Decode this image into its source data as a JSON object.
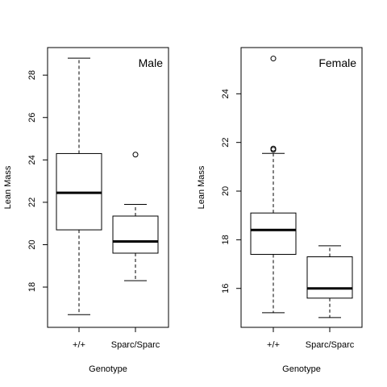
{
  "chart_data": [
    {
      "type": "box",
      "panel_label": "Male",
      "xlabel": "Genotype",
      "ylabel": "Lean Mass",
      "categories": [
        "+/+",
        "Sparc/Sparc"
      ],
      "yticks": [
        18,
        20,
        22,
        24,
        26,
        28
      ],
      "ylim": [
        16.1,
        29.3
      ],
      "boxes": [
        {
          "category": "+/+",
          "whisker_low": 16.7,
          "q1": 20.7,
          "median": 22.45,
          "q3": 24.3,
          "whisker_high": 28.8,
          "outliers": []
        },
        {
          "category": "Sparc/Sparc",
          "whisker_low": 18.3,
          "q1": 19.6,
          "median": 20.15,
          "q3": 21.35,
          "whisker_high": 21.9,
          "outliers": [
            24.25
          ]
        }
      ],
      "legend_position": "top-right",
      "grid": false
    },
    {
      "type": "box",
      "panel_label": "Female",
      "xlabel": "Genotype",
      "ylabel": "Lean Mass",
      "categories": [
        "+/+",
        "Sparc/Sparc"
      ],
      "yticks": [
        16,
        18,
        20,
        22,
        24
      ],
      "ylim": [
        14.4,
        25.9
      ],
      "boxes": [
        {
          "category": "+/+",
          "whisker_low": 15.0,
          "q1": 17.4,
          "median": 18.4,
          "q3": 19.1,
          "whisker_high": 21.55,
          "outliers": [
            21.7,
            21.75,
            25.45
          ]
        },
        {
          "category": "Sparc/Sparc",
          "whisker_low": 14.8,
          "q1": 15.6,
          "median": 16.0,
          "q3": 17.3,
          "whisker_high": 17.75,
          "outliers": []
        }
      ],
      "legend_position": "top-right",
      "grid": false
    }
  ]
}
